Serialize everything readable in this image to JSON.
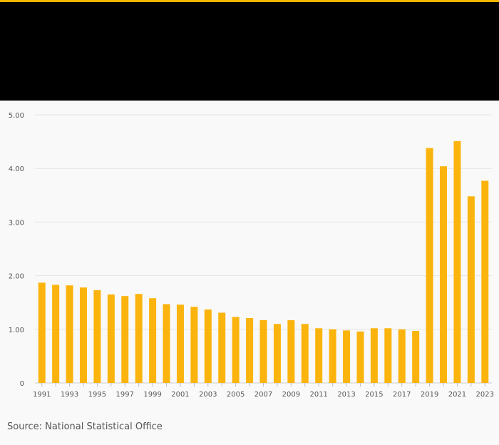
{
  "colors": {
    "accent": "#f7b500",
    "bar": "#fbb40d",
    "header": "#000000"
  },
  "footer": {
    "prefix": "Source:",
    "source_name": "National Statistical Office"
  },
  "chart_data": {
    "type": "bar",
    "title": "",
    "xlabel": "",
    "ylabel": "",
    "ylim": [
      0,
      5
    ],
    "y_ticks": [
      0,
      1,
      2,
      3,
      4,
      5
    ],
    "y_tick_labels": [
      "0",
      "1.00",
      "2.00",
      "3.00",
      "4.00",
      "5.00"
    ],
    "categories": [
      "1991",
      "1992",
      "1993",
      "1994",
      "1995",
      "1996",
      "1997",
      "1998",
      "1999",
      "2000",
      "2001",
      "2002",
      "2003",
      "2004",
      "2005",
      "2006",
      "2007",
      "2008",
      "2009",
      "2010",
      "2011",
      "2012",
      "2013",
      "2014",
      "2015",
      "2016",
      "2017",
      "2018",
      "2019",
      "2020",
      "2021",
      "2022",
      "2023"
    ],
    "x_tick_labels": [
      "1991",
      "1993",
      "1995",
      "1997",
      "1999",
      "2001",
      "2003",
      "2005",
      "2007",
      "2009",
      "2011",
      "2013",
      "2015",
      "2017",
      "2019",
      "2021",
      "2023"
    ],
    "values": [
      1.87,
      1.83,
      1.82,
      1.78,
      1.73,
      1.65,
      1.62,
      1.66,
      1.58,
      1.47,
      1.46,
      1.42,
      1.37,
      1.31,
      1.23,
      1.21,
      1.17,
      1.1,
      1.17,
      1.1,
      1.02,
      1.0,
      0.98,
      0.96,
      1.02,
      1.02,
      1.0,
      0.97,
      4.38,
      4.04,
      4.51,
      3.48,
      3.77
    ],
    "grid": true,
    "legend": "none"
  }
}
